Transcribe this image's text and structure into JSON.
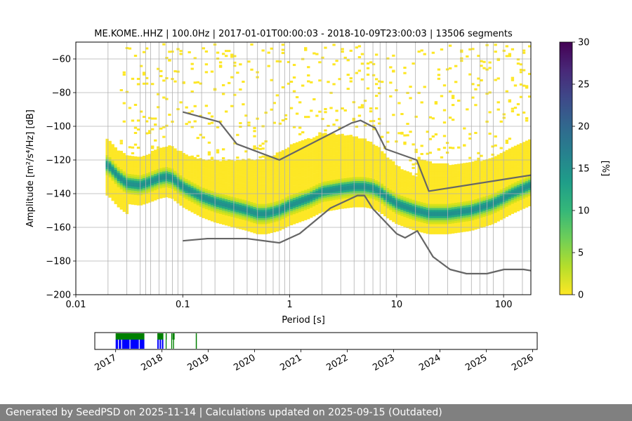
{
  "chart_data": {
    "type": "heatmap",
    "title": "ME.KOME..HHZ | 100.0Hz | 2017-01-01T00:00:03 - 2018-10-09T23:00:03 | 13506 segments",
    "xlabel": "Period [s]",
    "ylabel": "Amplitude [m²/s⁴/Hz] [dB]",
    "xscale": "log",
    "xlim": [
      0.01,
      180
    ],
    "ylim": [
      -200,
      -50
    ],
    "xticks": [
      {
        "value": 0.01,
        "label": "0.01"
      },
      {
        "value": 0.1,
        "label": "0.1"
      },
      {
        "value": 1,
        "label": "1"
      },
      {
        "value": 10,
        "label": "10"
      },
      {
        "value": 100,
        "label": "100"
      }
    ],
    "yticks": [
      {
        "value": -60,
        "label": "−60"
      },
      {
        "value": -80,
        "label": "−80"
      },
      {
        "value": -100,
        "label": "−100"
      },
      {
        "value": -120,
        "label": "−120"
      },
      {
        "value": -140,
        "label": "−140"
      },
      {
        "value": -160,
        "label": "−160"
      },
      {
        "value": -180,
        "label": "−180"
      },
      {
        "value": -200,
        "label": "−200"
      }
    ],
    "grid": true,
    "period_gridlines": [
      0.02,
      0.03,
      0.04,
      0.045,
      0.05,
      0.06,
      0.07,
      0.08,
      0.09,
      0.1,
      0.15,
      0.2,
      0.3,
      0.4,
      0.5,
      0.6,
      0.7,
      0.8,
      0.9,
      1,
      2,
      3,
      4,
      5,
      6,
      7,
      8,
      10,
      15,
      20,
      30,
      40,
      50,
      60,
      70,
      80,
      100,
      150
    ],
    "psd_mode_curve": {
      "name": "mode",
      "x": [
        0.02,
        0.025,
        0.03,
        0.04,
        0.05,
        0.06,
        0.07,
        0.08,
        0.1,
        0.15,
        0.2,
        0.3,
        0.4,
        0.5,
        0.6,
        0.7,
        0.8,
        1,
        1.5,
        2,
        3,
        4,
        5,
        6,
        7,
        8,
        10,
        15,
        20,
        30,
        50,
        80,
        120,
        180
      ],
      "y": [
        -123,
        -130,
        -134,
        -135,
        -133,
        -131,
        -130,
        -131,
        -136,
        -142,
        -145,
        -148,
        -150,
        -152,
        -152,
        -151,
        -150,
        -147,
        -143,
        -139,
        -137,
        -136,
        -136,
        -137,
        -139,
        -142,
        -146,
        -150,
        -152,
        -152,
        -150,
        -146,
        -140,
        -135
      ]
    },
    "noise_model_upper": {
      "name": "NHNM",
      "x": [
        0.1,
        0.22,
        0.32,
        0.8,
        3.8,
        4.6,
        6.3,
        7.9,
        15.4,
        20,
        180
      ],
      "y": [
        -91.5,
        -97.4,
        -110.5,
        -120,
        -98,
        -96.5,
        -101,
        -113.5,
        -120,
        -138.5,
        -129
      ]
    },
    "noise_model_lower": {
      "name": "NLNM",
      "x": [
        0.1,
        0.17,
        0.4,
        0.8,
        1.24,
        2.4,
        4.3,
        5,
        6,
        10,
        12,
        15.6,
        21.9,
        31.6,
        45,
        70,
        101,
        154,
        180
      ],
      "y": [
        -168,
        -166.7,
        -166.7,
        -169.2,
        -163.7,
        -148.6,
        -141.1,
        -141.1,
        -149,
        -163.8,
        -166.2,
        -162.1,
        -177.5,
        -185,
        -187.5,
        -187.5,
        -185,
        -185,
        -185.7
      ]
    },
    "colorbar": {
      "label": "[%]",
      "min": 0,
      "max": 30,
      "ticks": [
        0,
        5,
        10,
        15,
        20,
        25,
        30
      ],
      "colors": [
        "#fde725",
        "#b5de2b",
        "#6ece58",
        "#35b779",
        "#1f9e89",
        "#26828e",
        "#31688e",
        "#3e4989",
        "#482878",
        "#440154"
      ]
    },
    "timeline": {
      "x_labels": [
        "2017",
        "2018",
        "2019",
        "2020",
        "2021",
        "2022",
        "2023",
        "2024",
        "2025",
        "2026"
      ],
      "data_color": "#0000ff",
      "coverage_color": "#008000"
    }
  },
  "footer": {
    "text": "Generated by SeedPSD on 2025-11-14 | Calculations updated on 2025-09-15 (Outdated)"
  }
}
